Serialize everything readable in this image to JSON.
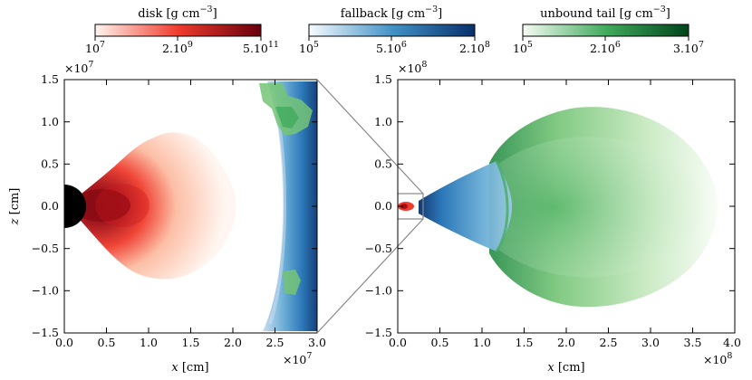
{
  "chart_data": [
    {
      "type": "heatmap",
      "name": "inner-view",
      "xlabel_var": "x",
      "xlabel_unit": " [cm]",
      "ylabel_var": "z",
      "ylabel_unit": " [cm]",
      "x_multiplier_base": "×10",
      "x_multiplier_exp": "7",
      "y_multiplier_base": "×10",
      "y_multiplier_exp": "7",
      "xlim": [
        0.0,
        3.0
      ],
      "ylim": [
        -1.5,
        1.5
      ],
      "xticks": [
        "0.0",
        "0.5",
        "1.0",
        "1.5",
        "2.0",
        "2.5",
        "3.0"
      ],
      "yticks": [
        "1.5",
        "1.0",
        "0.5",
        "0.0",
        "−0.5",
        "−1.0",
        "−1.5"
      ],
      "components": [
        "black hole",
        "disk",
        "fallback",
        "unbound tail"
      ]
    },
    {
      "type": "heatmap",
      "name": "outer-view",
      "xlabel_var": "x",
      "xlabel_unit": " [cm]",
      "ylabel_var": "",
      "ylabel_unit": "",
      "x_multiplier_base": "×10",
      "x_multiplier_exp": "8",
      "y_multiplier_base": "×10",
      "y_multiplier_exp": "8",
      "xlim": [
        0.0,
        4.0
      ],
      "ylim": [
        -1.5,
        1.5
      ],
      "xticks": [
        "0.0",
        "0.5",
        "1.0",
        "1.5",
        "2.0",
        "2.5",
        "3.0",
        "3.5",
        "4.0"
      ],
      "yticks": [
        "1.5",
        "1.0",
        "0.5",
        "0.0",
        "−0.5",
        "−1.0",
        "−1.5"
      ],
      "inset_box_x": [
        0.0,
        0.3
      ],
      "inset_box_z": [
        -0.15,
        0.15
      ],
      "components": [
        "disk",
        "fallback",
        "unbound tail"
      ]
    }
  ],
  "colorbars": [
    {
      "title": "disk [g cm",
      "title_exp": "−3",
      "title_end": "]",
      "ticks": [
        {
          "base": "10",
          "exp": "7"
        },
        {
          "base": "2.10",
          "exp": "9"
        },
        {
          "base": "5.10",
          "exp": "11"
        }
      ],
      "color_low": "#fff5f0",
      "color_mid": "#ef3b2c",
      "color_high": "#67000d"
    },
    {
      "title": "fallback [g cm",
      "title_exp": "−3",
      "title_end": "]",
      "ticks": [
        {
          "base": "10",
          "exp": "5"
        },
        {
          "base": "5.10",
          "exp": "6"
        },
        {
          "base": "2.10",
          "exp": "8"
        }
      ],
      "color_low": "#f7fbff",
      "color_mid": "#4292c6",
      "color_high": "#08306b"
    },
    {
      "title": "unbound tail [g cm",
      "title_exp": "−3",
      "title_end": "]",
      "ticks": [
        {
          "base": "10",
          "exp": "5"
        },
        {
          "base": "2.10",
          "exp": "6"
        },
        {
          "base": "3.10",
          "exp": "7"
        }
      ],
      "color_low": "#f7fcf5",
      "color_mid": "#41ab5d",
      "color_high": "#00441b"
    }
  ]
}
